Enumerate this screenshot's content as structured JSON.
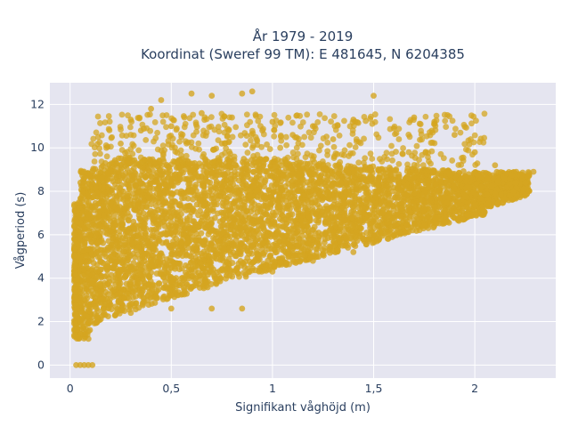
{
  "chart_data": {
    "type": "scatter",
    "title_line1": "År 1979 - 2019",
    "title_line2": "Koordinat (Sweref 99 TM): E 481645, N 6204385",
    "xlabel": "Signifikant våghöjd (m)",
    "ylabel": "Vågperiod (s)",
    "xlim": [
      -0.1,
      2.4
    ],
    "ylim": [
      -0.6,
      13.0
    ],
    "x_ticks": [
      0,
      0.5,
      1,
      1.5,
      2
    ],
    "x_tick_labels": [
      "0",
      "0,5",
      "1",
      "1,5",
      "2"
    ],
    "y_ticks": [
      0,
      2,
      4,
      6,
      8,
      10,
      12
    ],
    "y_tick_labels": [
      "0",
      "2",
      "4",
      "6",
      "8",
      "10",
      "12"
    ],
    "grid": true,
    "marker_color": "#d4a520",
    "plot_background": "#e5e5f0",
    "series": [
      {
        "values": [
          [
            0.03,
            0.0
          ],
          [
            0.05,
            0.0
          ],
          [
            0.07,
            0.0
          ],
          [
            0.09,
            0.0
          ],
          [
            0.11,
            0.0
          ],
          [
            0.04,
            1.4
          ],
          [
            0.06,
            2.1
          ],
          [
            0.08,
            3.2
          ],
          [
            0.1,
            4.0
          ],
          [
            0.12,
            5.1
          ],
          [
            0.14,
            6.2
          ],
          [
            0.16,
            7.1
          ],
          [
            0.18,
            8.2
          ],
          [
            0.2,
            9.0
          ],
          [
            0.25,
            10.2
          ],
          [
            0.3,
            11.3
          ],
          [
            0.35,
            10.8
          ],
          [
            0.4,
            11.8
          ],
          [
            0.45,
            12.2
          ],
          [
            0.5,
            11.0
          ],
          [
            0.55,
            10.5
          ],
          [
            0.6,
            12.5
          ],
          [
            0.65,
            11.6
          ],
          [
            0.7,
            12.4
          ],
          [
            0.75,
            10.2
          ],
          [
            0.8,
            11.4
          ],
          [
            0.85,
            12.5
          ],
          [
            0.9,
            12.6
          ],
          [
            0.95,
            10.8
          ],
          [
            1.0,
            11.2
          ],
          [
            1.1,
            10.6
          ],
          [
            1.2,
            11.0
          ],
          [
            1.3,
            10.4
          ],
          [
            1.4,
            11.3
          ],
          [
            1.5,
            12.4
          ],
          [
            1.6,
            10.9
          ],
          [
            1.7,
            11.4
          ],
          [
            1.8,
            11.2
          ],
          [
            1.9,
            10.6
          ],
          [
            2.0,
            9.8
          ],
          [
            2.1,
            9.2
          ],
          [
            2.2,
            8.8
          ],
          [
            2.29,
            8.9
          ],
          [
            0.3,
            2.4
          ],
          [
            0.5,
            2.6
          ],
          [
            0.7,
            2.6
          ],
          [
            0.85,
            2.6
          ],
          [
            1.0,
            4.3
          ],
          [
            1.2,
            4.8
          ],
          [
            1.4,
            5.2
          ],
          [
            1.6,
            6.0
          ],
          [
            1.8,
            6.8
          ],
          [
            2.0,
            7.4
          ],
          [
            2.2,
            8.0
          ]
        ]
      }
    ]
  }
}
